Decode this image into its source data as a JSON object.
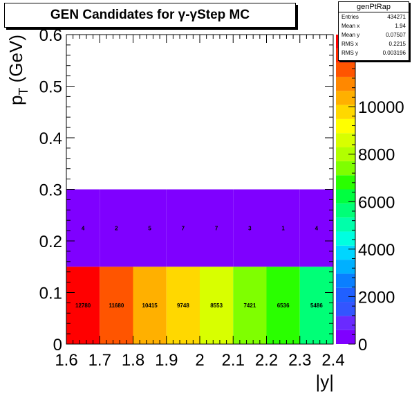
{
  "title": "GEN Candidates for  γ-γStep MC",
  "stats": {
    "name": "genPtRap",
    "rows": [
      {
        "label": "Entries",
        "value": "434271"
      },
      {
        "label": "Mean x",
        "value": "1.94"
      },
      {
        "label": "Mean y",
        "value": "0.07507"
      },
      {
        "label": "RMS x",
        "value": "0.2215"
      },
      {
        "label": "RMS y",
        "value": "0.003196"
      }
    ]
  },
  "chart_data": {
    "type": "heatmap",
    "title": "GEN Candidates for  γ-γStep MC",
    "xlabel": "|y|",
    "ylabel": "p_T (GeV)",
    "xlim": [
      1.6,
      2.4
    ],
    "ylim": [
      0,
      0.6
    ],
    "x_ticks": [
      "1.6",
      "1.7",
      "1.8",
      "1.9",
      "2",
      "2.1",
      "2.2",
      "2.3",
      "2.4"
    ],
    "y_ticks": [
      "0",
      "0.1",
      "0.2",
      "0.3",
      "0.4",
      "0.5",
      "0.6"
    ],
    "x_bins": [
      1.6,
      1.7,
      1.8,
      1.9,
      2.0,
      2.1,
      2.2,
      2.3,
      2.4
    ],
    "y_bins": [
      0,
      0.15,
      0.3
    ],
    "cells": [
      [
        12780,
        11680,
        10415,
        9748,
        8553,
        7421,
        6536,
        5486
      ],
      [
        4,
        2,
        5,
        7,
        7,
        3,
        1,
        4
      ]
    ],
    "cell_labels": [
      [
        "12780",
        "11680",
        "10415",
        "9748",
        "8553",
        "7421",
        "6536",
        "5486"
      ],
      [
        "4",
        "2",
        "5",
        "7",
        "7",
        "3",
        "1",
        "4"
      ]
    ],
    "z_range": [
      0,
      12780
    ],
    "z_ticks": [
      "0",
      "2000",
      "4000",
      "6000",
      "8000",
      "10000"
    ],
    "palette": [
      "#7f00ff",
      "#6a2aff",
      "#3355ff",
      "#2060ff",
      "#0a7fff",
      "#00b0ff",
      "#00d6ff",
      "#00ffe0",
      "#00ffaa",
      "#00ff77",
      "#00ff40",
      "#2aff00",
      "#7fff00",
      "#b2ff00",
      "#d8ff00",
      "#ffff00",
      "#ffd800",
      "#ffb000",
      "#ff8800",
      "#ff5500",
      "#ff2a00",
      "#ff0000"
    ]
  }
}
